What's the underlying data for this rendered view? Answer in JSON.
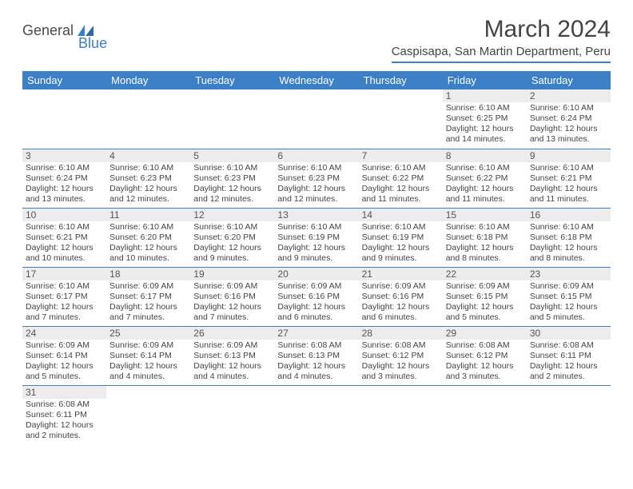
{
  "logo": {
    "part1": "General",
    "part2": "Blue"
  },
  "title": "March 2024",
  "subtitle": "Caspisapa, San Martin Department, Peru",
  "colors": {
    "accent": "#3b7fc4",
    "header_text": "#ffffff",
    "daynum_bg": "#ececec",
    "text": "#444444",
    "background": "#ffffff"
  },
  "day_headers": [
    "Sunday",
    "Monday",
    "Tuesday",
    "Wednesday",
    "Thursday",
    "Friday",
    "Saturday"
  ],
  "weeks": [
    [
      null,
      null,
      null,
      null,
      null,
      {
        "n": "1",
        "sunrise": "6:10 AM",
        "sunset": "6:25 PM",
        "daylight": "12 hours and 14 minutes."
      },
      {
        "n": "2",
        "sunrise": "6:10 AM",
        "sunset": "6:24 PM",
        "daylight": "12 hours and 13 minutes."
      }
    ],
    [
      {
        "n": "3",
        "sunrise": "6:10 AM",
        "sunset": "6:24 PM",
        "daylight": "12 hours and 13 minutes."
      },
      {
        "n": "4",
        "sunrise": "6:10 AM",
        "sunset": "6:23 PM",
        "daylight": "12 hours and 12 minutes."
      },
      {
        "n": "5",
        "sunrise": "6:10 AM",
        "sunset": "6:23 PM",
        "daylight": "12 hours and 12 minutes."
      },
      {
        "n": "6",
        "sunrise": "6:10 AM",
        "sunset": "6:23 PM",
        "daylight": "12 hours and 12 minutes."
      },
      {
        "n": "7",
        "sunrise": "6:10 AM",
        "sunset": "6:22 PM",
        "daylight": "12 hours and 11 minutes."
      },
      {
        "n": "8",
        "sunrise": "6:10 AM",
        "sunset": "6:22 PM",
        "daylight": "12 hours and 11 minutes."
      },
      {
        "n": "9",
        "sunrise": "6:10 AM",
        "sunset": "6:21 PM",
        "daylight": "12 hours and 11 minutes."
      }
    ],
    [
      {
        "n": "10",
        "sunrise": "6:10 AM",
        "sunset": "6:21 PM",
        "daylight": "12 hours and 10 minutes."
      },
      {
        "n": "11",
        "sunrise": "6:10 AM",
        "sunset": "6:20 PM",
        "daylight": "12 hours and 10 minutes."
      },
      {
        "n": "12",
        "sunrise": "6:10 AM",
        "sunset": "6:20 PM",
        "daylight": "12 hours and 9 minutes."
      },
      {
        "n": "13",
        "sunrise": "6:10 AM",
        "sunset": "6:19 PM",
        "daylight": "12 hours and 9 minutes."
      },
      {
        "n": "14",
        "sunrise": "6:10 AM",
        "sunset": "6:19 PM",
        "daylight": "12 hours and 9 minutes."
      },
      {
        "n": "15",
        "sunrise": "6:10 AM",
        "sunset": "6:18 PM",
        "daylight": "12 hours and 8 minutes."
      },
      {
        "n": "16",
        "sunrise": "6:10 AM",
        "sunset": "6:18 PM",
        "daylight": "12 hours and 8 minutes."
      }
    ],
    [
      {
        "n": "17",
        "sunrise": "6:10 AM",
        "sunset": "6:17 PM",
        "daylight": "12 hours and 7 minutes."
      },
      {
        "n": "18",
        "sunrise": "6:09 AM",
        "sunset": "6:17 PM",
        "daylight": "12 hours and 7 minutes."
      },
      {
        "n": "19",
        "sunrise": "6:09 AM",
        "sunset": "6:16 PM",
        "daylight": "12 hours and 7 minutes."
      },
      {
        "n": "20",
        "sunrise": "6:09 AM",
        "sunset": "6:16 PM",
        "daylight": "12 hours and 6 minutes."
      },
      {
        "n": "21",
        "sunrise": "6:09 AM",
        "sunset": "6:16 PM",
        "daylight": "12 hours and 6 minutes."
      },
      {
        "n": "22",
        "sunrise": "6:09 AM",
        "sunset": "6:15 PM",
        "daylight": "12 hours and 5 minutes."
      },
      {
        "n": "23",
        "sunrise": "6:09 AM",
        "sunset": "6:15 PM",
        "daylight": "12 hours and 5 minutes."
      }
    ],
    [
      {
        "n": "24",
        "sunrise": "6:09 AM",
        "sunset": "6:14 PM",
        "daylight": "12 hours and 5 minutes."
      },
      {
        "n": "25",
        "sunrise": "6:09 AM",
        "sunset": "6:14 PM",
        "daylight": "12 hours and 4 minutes."
      },
      {
        "n": "26",
        "sunrise": "6:09 AM",
        "sunset": "6:13 PM",
        "daylight": "12 hours and 4 minutes."
      },
      {
        "n": "27",
        "sunrise": "6:08 AM",
        "sunset": "6:13 PM",
        "daylight": "12 hours and 4 minutes."
      },
      {
        "n": "28",
        "sunrise": "6:08 AM",
        "sunset": "6:12 PM",
        "daylight": "12 hours and 3 minutes."
      },
      {
        "n": "29",
        "sunrise": "6:08 AM",
        "sunset": "6:12 PM",
        "daylight": "12 hours and 3 minutes."
      },
      {
        "n": "30",
        "sunrise": "6:08 AM",
        "sunset": "6:11 PM",
        "daylight": "12 hours and 2 minutes."
      }
    ],
    [
      {
        "n": "31",
        "sunrise": "6:08 AM",
        "sunset": "6:11 PM",
        "daylight": "12 hours and 2 minutes."
      },
      null,
      null,
      null,
      null,
      null,
      null
    ]
  ],
  "labels": {
    "sunrise": "Sunrise: ",
    "sunset": "Sunset: ",
    "daylight": "Daylight: "
  }
}
